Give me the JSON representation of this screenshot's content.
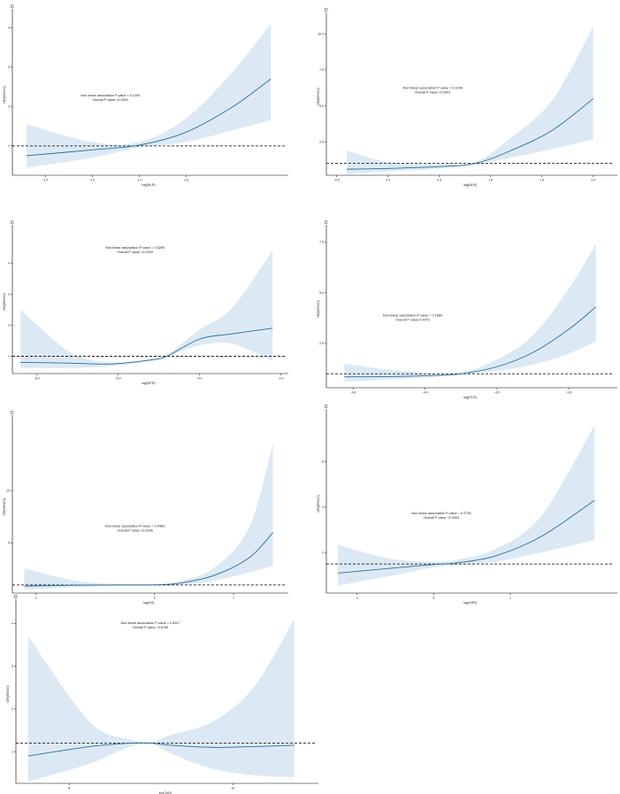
{
  "colors": {
    "line": "#2a6f97",
    "band": "#dce9f5",
    "ref": "#000000",
    "axis": "#000000"
  },
  "chart_data": [
    {
      "type": "line",
      "panel_label": "D",
      "title": "",
      "xlabel": "log(NLR)",
      "ylabel": "OR(95%CI)",
      "xlim": [
        -2.35,
        0.55
      ],
      "ylim": [
        0.3,
        4.3
      ],
      "xticks": [
        -2.0,
        -1.5,
        -1.0,
        -0.5
      ],
      "xtick_labels": [
        "-2.0",
        "-1.5",
        "-1.0",
        "-0.5"
      ],
      "yticks": [
        1,
        2,
        3,
        4
      ],
      "ytick_labels": [
        "1",
        "2",
        "3",
        "4"
      ],
      "ref_y": 1.0,
      "annotation": [
        "Non-linear association P value = 0.2199",
        "Overall P value <0.0001"
      ],
      "x": [
        -2.2,
        -1.5,
        -1.0,
        -0.5,
        0.0,
        0.4
      ],
      "y": [
        0.75,
        0.9,
        1.02,
        1.35,
        2.0,
        2.7
      ],
      "lower": [
        0.45,
        0.7,
        0.96,
        1.1,
        1.4,
        1.65
      ],
      "upper": [
        1.55,
        1.1,
        1.1,
        1.7,
        2.9,
        4.1
      ]
    },
    {
      "type": "line",
      "panel_label": "D",
      "title": "",
      "xlabel": "log(NLR)",
      "ylabel": "OR(95%CI)",
      "xlim": [
        -0.6,
        2.2
      ],
      "ylim": [
        0.3,
        11.0
      ],
      "xticks": [
        -0.5,
        0.0,
        0.5,
        1.0,
        1.5,
        2.0
      ],
      "xtick_labels": [
        "-0.5",
        "0.0",
        "0.5",
        "1.0",
        "1.5",
        "2.0"
      ],
      "yticks": [
        2.5,
        5.0,
        7.5,
        10.0
      ],
      "ytick_labels": [
        "2.5",
        "5.0",
        "7.5",
        "10.0"
      ],
      "ref_y": 1.0,
      "annotation": [
        "Non-linear association P value = 0.1008",
        "Overall P value <0.0001"
      ],
      "x": [
        -0.4,
        0.0,
        0.5,
        0.85,
        1.2,
        1.6,
        2.0
      ],
      "y": [
        0.6,
        0.65,
        0.78,
        1.0,
        1.9,
        3.3,
        5.5
      ],
      "lower": [
        0.25,
        0.45,
        0.62,
        0.93,
        1.4,
        2.0,
        2.65
      ],
      "upper": [
        1.9,
        1.1,
        0.95,
        1.1,
        2.8,
        5.4,
        10.5
      ]
    },
    {
      "type": "line",
      "panel_label": "D",
      "title": "",
      "xlabel": "log(NPR)",
      "ylabel": "OR(95%CI)",
      "xlim": [
        -6.3,
        -2.95
      ],
      "ylim": [
        0.5,
        5.0
      ],
      "xticks": [
        -6.0,
        -5.0,
        -4.0,
        -3.0
      ],
      "xtick_labels": [
        "-6.0",
        "-5.0",
        "-4.0",
        "-3.0"
      ],
      "yticks": [
        1,
        2,
        3,
        4
      ],
      "ytick_labels": [
        "1",
        "2",
        "3",
        "4"
      ],
      "ref_y": 1.0,
      "annotation": [
        "Non-linear association P value = 0.5250",
        "Overall P value <0.0200"
      ],
      "x": [
        -6.2,
        -5.6,
        -5.1,
        -4.6,
        -4.4,
        -4.0,
        -3.6,
        -3.1
      ],
      "y": [
        0.8,
        0.78,
        0.75,
        0.88,
        1.0,
        1.55,
        1.72,
        1.9
      ],
      "lower": [
        0.62,
        0.62,
        0.68,
        0.85,
        0.98,
        1.35,
        1.4,
        0.85
      ],
      "upper": [
        2.5,
        1.15,
        0.8,
        0.92,
        1.05,
        1.85,
        2.55,
        4.4
      ]
    },
    {
      "type": "line",
      "panel_label": "D",
      "title": "",
      "xlabel": "log(PLR)",
      "ylabel": "OR(95%CI)",
      "xlim": [
        -4.95,
        -3.35
      ],
      "ylim": [
        0.4,
        8.0
      ],
      "xticks": [
        -4.8,
        -4.4,
        -4.0,
        -3.6
      ],
      "xtick_labels": [
        "-4.8",
        "-4.4",
        "-4.0",
        "-3.6"
      ],
      "yticks": [
        2.5,
        5.0,
        7.5
      ],
      "ytick_labels": [
        "2.5",
        "5.0",
        "7.5"
      ],
      "ref_y": 1.0,
      "annotation": [
        "Non-linear association P value = 0.1689",
        "Overall P value 0.0079"
      ],
      "x": [
        -4.85,
        -4.6,
        -4.35,
        -4.2,
        -4.0,
        -3.8,
        -3.6,
        -3.45
      ],
      "y": [
        0.85,
        0.86,
        0.92,
        1.0,
        1.35,
        2.05,
        3.2,
        4.3
      ],
      "lower": [
        0.6,
        0.72,
        0.85,
        0.97,
        1.15,
        1.45,
        2.0,
        2.6
      ],
      "upper": [
        1.5,
        1.2,
        1.0,
        1.05,
        1.7,
        2.9,
        5.2,
        7.4
      ]
    },
    {
      "type": "line",
      "panel_label": "D",
      "title": "",
      "xlabel": "log(SII)",
      "ylabel": "OR(95%CI)",
      "xlim": [
        1.4,
        8.3
      ],
      "ylim": [
        0.4,
        16.5
      ],
      "xticks": [
        2,
        5,
        7
      ],
      "xtick_labels": [
        "2",
        "5",
        "7"
      ],
      "yticks": [
        5,
        10
      ],
      "ytick_labels": [
        "5",
        "10"
      ],
      "ref_y": 1.0,
      "annotation": [
        "Non-linear association P value = 0.0463",
        "Overall P value <0.0006"
      ],
      "x": [
        1.7,
        3.0,
        4.0,
        5.0,
        5.6,
        6.5,
        7.4,
        8.0
      ],
      "y": [
        0.9,
        0.98,
        1.0,
        1.02,
        1.15,
        1.9,
        3.6,
        6.0
      ],
      "lower": [
        0.55,
        0.8,
        0.92,
        0.96,
        1.0,
        1.4,
        2.2,
        2.8
      ],
      "upper": [
        2.6,
        1.4,
        1.12,
        1.1,
        1.35,
        2.6,
        6.5,
        14.5
      ]
    },
    {
      "type": "line",
      "panel_label": "D",
      "title": "",
      "xlabel": "log(SIRI)",
      "ylabel": "OR(95%CI)",
      "xlim": [
        -1.4,
        2.35
      ],
      "ylim": [
        0.3,
        8.0
      ],
      "xticks": [
        -1,
        0,
        1
      ],
      "xtick_labels": [
        "-1",
        "0",
        "1"
      ],
      "yticks": [
        2,
        4,
        6
      ],
      "ytick_labels": [
        "2",
        "4",
        "6"
      ],
      "ref_y": 1.5,
      "annotation": [
        "Non-linear association P value = 0.2736",
        "Overall P value <0.0002"
      ],
      "x": [
        -1.25,
        -0.6,
        0.0,
        0.3,
        0.8,
        1.4,
        2.1
      ],
      "y": [
        1.1,
        1.3,
        1.48,
        1.55,
        1.85,
        2.7,
        4.3
      ],
      "lower": [
        0.55,
        0.95,
        1.35,
        1.45,
        1.6,
        2.0,
        2.55
      ],
      "upper": [
        2.35,
        1.75,
        1.6,
        1.68,
        2.15,
        3.6,
        7.6
      ]
    },
    {
      "type": "line",
      "panel_label": "D",
      "title": "",
      "xlabel": "log(TyG)",
      "ylabel": "OR(95%CI)",
      "xlim": [
        4.7,
        12.0
      ],
      "ylim": [
        0.3,
        4.4
      ],
      "xticks": [
        6,
        10
      ],
      "xtick_labels": [
        "6",
        "10"
      ],
      "yticks": [
        1,
        2,
        3,
        4
      ],
      "ytick_labels": [
        "1",
        "2",
        "3",
        "4"
      ],
      "ref_y": 1.2,
      "annotation": [
        "Non-linear association P value = 0.6917",
        "Overall P value <0.8756"
      ],
      "x": [
        5.0,
        6.5,
        7.5,
        8.0,
        8.5,
        9.5,
        10.5,
        11.5
      ],
      "y": [
        0.9,
        1.12,
        1.2,
        1.2,
        1.15,
        1.1,
        1.12,
        1.15
      ],
      "lower": [
        0.3,
        0.72,
        1.12,
        1.18,
        0.95,
        0.6,
        0.45,
        0.4
      ],
      "upper": [
        3.7,
        1.7,
        1.28,
        1.22,
        1.4,
        1.7,
        2.5,
        4.1
      ]
    }
  ]
}
